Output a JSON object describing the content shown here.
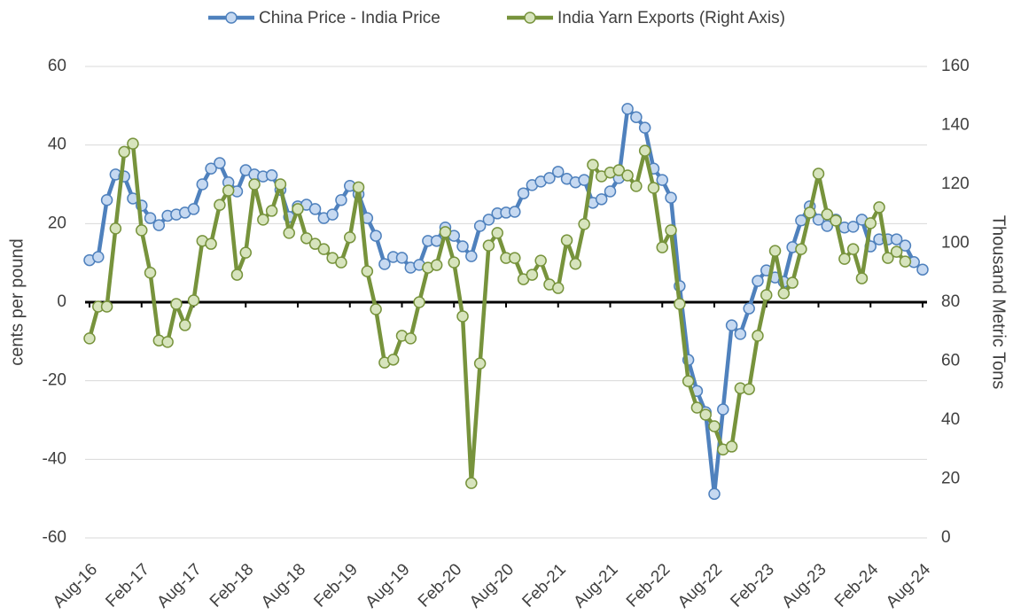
{
  "chart_data": {
    "type": "line",
    "categories": [
      "Aug-16",
      null,
      null,
      null,
      null,
      null,
      "Feb-17",
      null,
      null,
      null,
      null,
      null,
      "Aug-17",
      null,
      null,
      null,
      null,
      null,
      "Feb-18",
      null,
      null,
      null,
      null,
      null,
      "Aug-18",
      null,
      null,
      null,
      null,
      null,
      "Feb-19",
      null,
      null,
      null,
      null,
      null,
      "Aug-19",
      null,
      null,
      null,
      null,
      null,
      "Feb-20",
      null,
      null,
      null,
      null,
      null,
      "Aug-20",
      null,
      null,
      null,
      null,
      null,
      "Feb-21",
      null,
      null,
      null,
      null,
      null,
      "Aug-21",
      null,
      null,
      null,
      null,
      null,
      "Feb-22",
      null,
      null,
      null,
      null,
      null,
      "Aug-22",
      null,
      null,
      null,
      null,
      null,
      "Feb-23",
      null,
      null,
      null,
      null,
      null,
      "Aug-23",
      null,
      null,
      null,
      null,
      null,
      "Feb-24",
      null,
      null,
      null,
      null,
      null,
      "Aug-24"
    ],
    "series": [
      {
        "name": "China Price - India Price",
        "color": "#4f81bd",
        "marker_fill": "#c6d9f1",
        "values": [
          10.7,
          11.5,
          26,
          32.5,
          32,
          26.4,
          24.6,
          21.4,
          19.6,
          22,
          22.3,
          22.8,
          23.7,
          30,
          34,
          35.4,
          30.5,
          28.2,
          33.6,
          32.5,
          32,
          32.3,
          28.6,
          21.7,
          24.4,
          24.8,
          23.7,
          21.4,
          22.3,
          26,
          29.6,
          27.5,
          21.4,
          16.9,
          9.7,
          11.5,
          11.3,
          8.8,
          9.5,
          15.6,
          15.6,
          19,
          16.9,
          14.2,
          11.7,
          19.4,
          21,
          22.6,
          22.8,
          23,
          27.7,
          29.8,
          30.7,
          31.6,
          33.2,
          31.4,
          30.5,
          31.1,
          25.3,
          26.2,
          28.2,
          31.6,
          49.2,
          47.1,
          44.4,
          34,
          31.1,
          26.6,
          4.1,
          -14.7,
          -22.6,
          -28,
          -48.8,
          -27.3,
          -5.9,
          -8.1,
          -1.6,
          5.4,
          8.1,
          6.3,
          5.2,
          14,
          20.8,
          24.4,
          21,
          19.4,
          21,
          19,
          19.2,
          21,
          14.2,
          16,
          16,
          16,
          14.4,
          10.2,
          8.3
        ]
      },
      {
        "name": "India Yarn Exports (Right Axis)",
        "color": "#77933c",
        "marker_fill": "#d7e4bd",
        "axis": "y2",
        "values": [
          67.7,
          78.5,
          78.5,
          105,
          131,
          133.8,
          104.4,
          90,
          67,
          66.5,
          79.4,
          72.2,
          80.6,
          100.8,
          99.8,
          113,
          117.9,
          89.3,
          96.8,
          120,
          108,
          111,
          120,
          103.5,
          111.6,
          101.7,
          99.8,
          98,
          95,
          93.5,
          102,
          119,
          90.5,
          77.6,
          59.5,
          60.5,
          68.6,
          67.7,
          80,
          91.7,
          92.6,
          103.8,
          93.5,
          75.2,
          18.6,
          59.2,
          99.2,
          103.5,
          95,
          95,
          87.8,
          89.3,
          94.1,
          86,
          84.8,
          101,
          93,
          106.5,
          126.6,
          122.7,
          124,
          124.8,
          123,
          119.4,
          131.4,
          118.8,
          98.6,
          104.4,
          79.4,
          53.2,
          44.2,
          41.8,
          37.9,
          30,
          31,
          50.8,
          50.5,
          68.6,
          82.4,
          97.4,
          83,
          86.6,
          98,
          110.4,
          123.6,
          109.8,
          107.7,
          94.7,
          98,
          88.1,
          106.8,
          112.2,
          95,
          97.1,
          93.8,
          null,
          null
        ]
      }
    ],
    "y_label": "cents per pound",
    "y2_label": "Thousand Metric Tons",
    "ylim": [
      -60,
      60
    ],
    "yticks": [
      -60,
      -40,
      -20,
      0,
      20,
      40,
      60
    ],
    "y2lim": [
      0,
      160
    ],
    "y2ticks": [
      0,
      20,
      40,
      60,
      80,
      100,
      120,
      140,
      160
    ],
    "grid": true,
    "legend": "top"
  }
}
